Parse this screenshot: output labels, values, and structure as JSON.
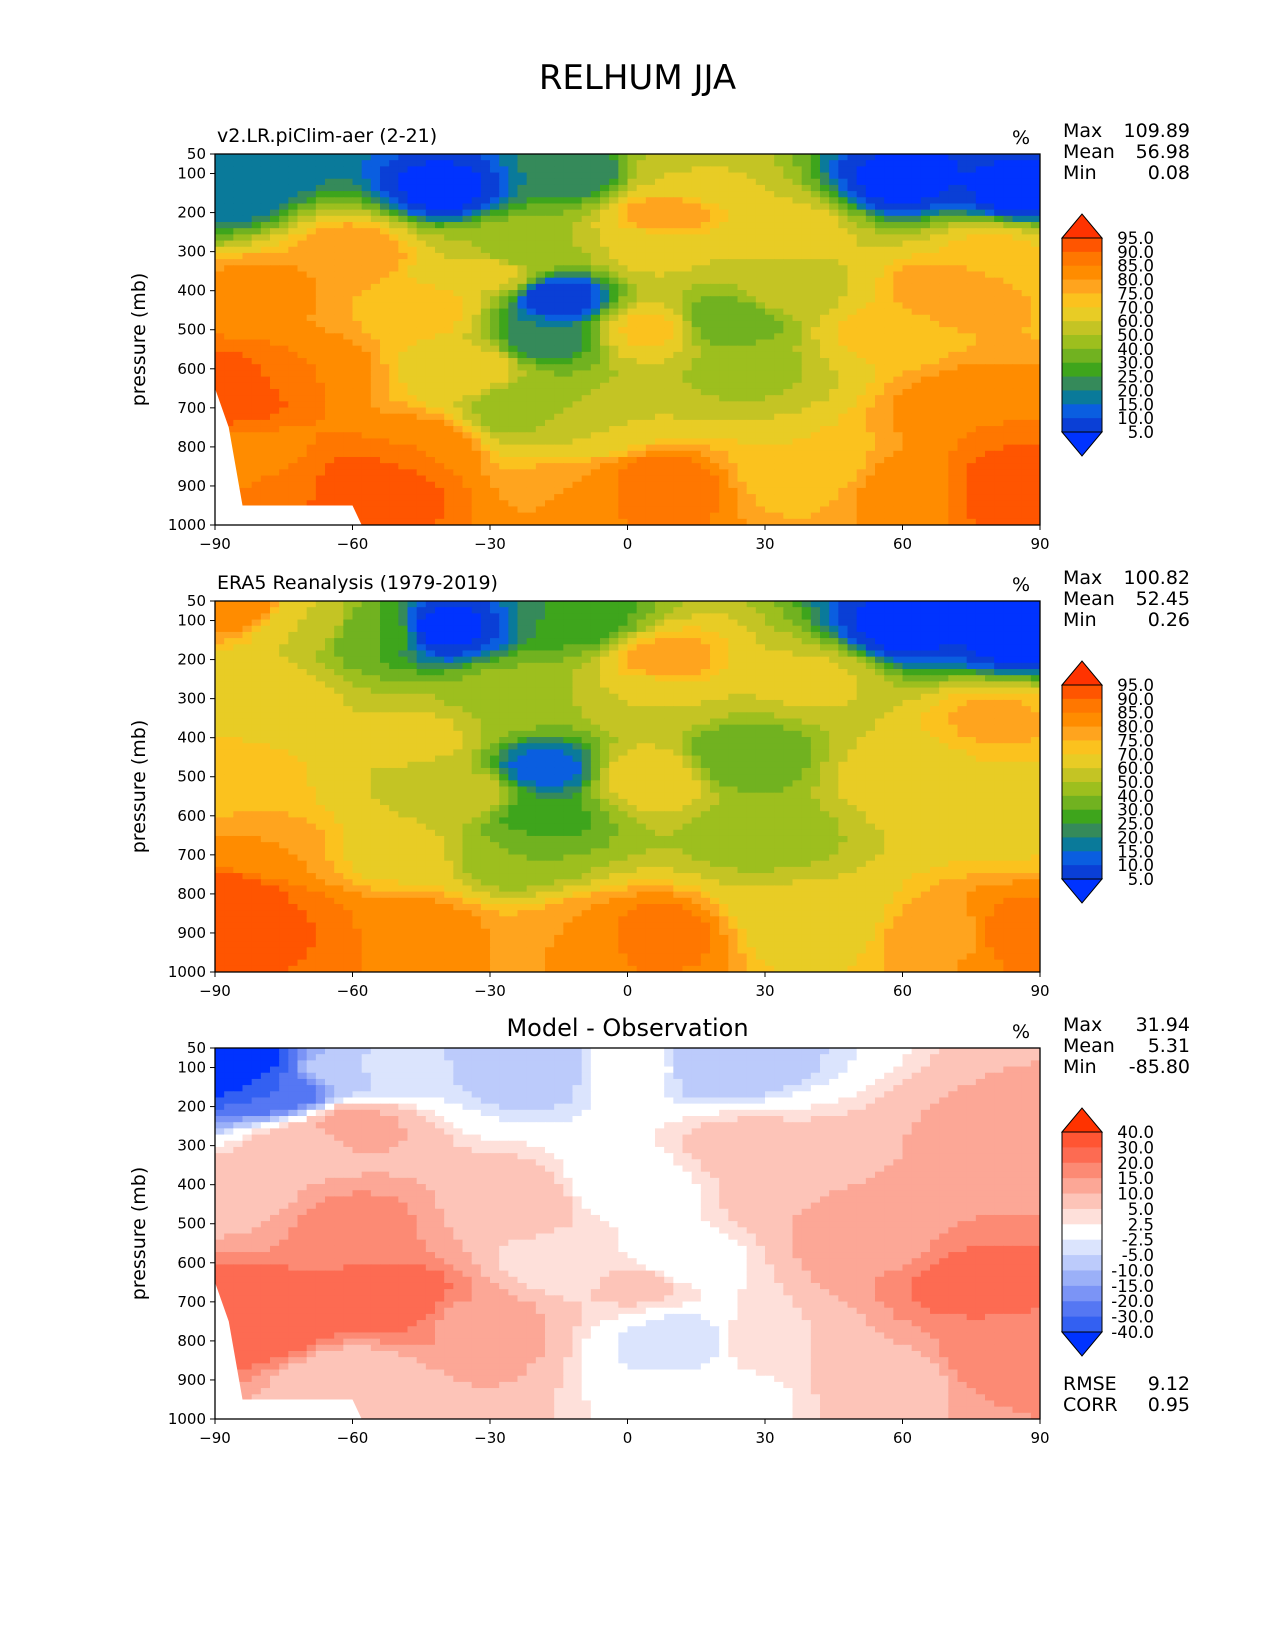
{
  "figure": {
    "title": "RELHUM JJA"
  },
  "chart_data": [
    {
      "type": "heatmap",
      "title": "v2.LR.piClim-aer (2-21)",
      "units": "%",
      "ylabel": "pressure (mb)",
      "xticks": [
        "−90",
        "−60",
        "−30",
        "0",
        "30",
        "60",
        "90"
      ],
      "yticks": [
        "50",
        "100",
        "200",
        "300",
        "400",
        "500",
        "600",
        "700",
        "800",
        "900",
        "1000"
      ],
      "xlim": [
        -90,
        90
      ],
      "ylim": [
        1000,
        50
      ],
      "stats": [
        {
          "label": "Max",
          "value": "109.89"
        },
        {
          "label": "Mean",
          "value": "56.98"
        },
        {
          "label": "Min",
          "value": "0.08"
        }
      ],
      "colorbar": {
        "levels": [
          "95.0",
          "90.0",
          "85.0",
          "80.0",
          "75.0",
          "70.0",
          "60.0",
          "50.0",
          "40.0",
          "30.0",
          "25.0",
          "20.0",
          "15.0",
          "10.0",
          "5.0"
        ],
        "colors": [
          "#ff3300",
          "#ff5500",
          "#ff7700",
          "#ff8c00",
          "#ffa41e",
          "#fbc21e",
          "#e8cc25",
          "#c4c424",
          "#9dbf1e",
          "#71b220",
          "#3ea51c",
          "#358a5a",
          "#0a7a9a",
          "#0a5ee0",
          "#0a3fd6",
          "#0033ff"
        ]
      },
      "regions": [
        {
          "lon": -88,
          "p": 150,
          "value": 15
        },
        {
          "lon": -80,
          "p": 70,
          "value": 15
        },
        {
          "lon": -40,
          "p": 140,
          "value": 3
        },
        {
          "lon": 60,
          "p": 120,
          "value": 3
        },
        {
          "lon": 85,
          "p": 150,
          "value": 3
        },
        {
          "lon": -10,
          "p": 100,
          "value": 20
        },
        {
          "lon": 10,
          "p": 120,
          "value": 60
        },
        {
          "lon": 8,
          "p": 200,
          "value": 80
        },
        {
          "lon": -60,
          "p": 300,
          "value": 80
        },
        {
          "lon": -80,
          "p": 400,
          "value": 82
        },
        {
          "lon": -70,
          "p": 600,
          "value": 85
        },
        {
          "lon": -87,
          "p": 650,
          "value": 95
        },
        {
          "lon": -82,
          "p": 850,
          "value": 80
        },
        {
          "lon": -75,
          "p": 900,
          "value": 90
        },
        {
          "lon": -55,
          "p": 900,
          "value": 95
        },
        {
          "lon": -45,
          "p": 800,
          "value": 85
        },
        {
          "lon": -45,
          "p": 450,
          "value": 75
        },
        {
          "lon": -35,
          "p": 600,
          "value": 68
        },
        {
          "lon": -30,
          "p": 350,
          "value": 65
        },
        {
          "lon": -15,
          "p": 420,
          "value": 5
        },
        {
          "lon": -18,
          "p": 520,
          "value": 20
        },
        {
          "lon": -22,
          "p": 700,
          "value": 40
        },
        {
          "lon": -25,
          "p": 300,
          "value": 45
        },
        {
          "lon": -10,
          "p": 750,
          "value": 60
        },
        {
          "lon": 5,
          "p": 500,
          "value": 72
        },
        {
          "lon": 5,
          "p": 300,
          "value": 62
        },
        {
          "lon": 5,
          "p": 900,
          "value": 90
        },
        {
          "lon": -10,
          "p": 900,
          "value": 80
        },
        {
          "lon": 22,
          "p": 480,
          "value": 30
        },
        {
          "lon": 25,
          "p": 600,
          "value": 48
        },
        {
          "lon": 35,
          "p": 400,
          "value": 55
        },
        {
          "lon": 40,
          "p": 850,
          "value": 70
        },
        {
          "lon": 35,
          "p": 250,
          "value": 65
        },
        {
          "lon": 55,
          "p": 500,
          "value": 72
        },
        {
          "lon": 70,
          "p": 400,
          "value": 80
        },
        {
          "lon": 75,
          "p": 700,
          "value": 85
        },
        {
          "lon": 80,
          "p": 300,
          "value": 72
        },
        {
          "lon": 85,
          "p": 900,
          "value": 95
        },
        {
          "lon": 60,
          "p": 900,
          "value": 82
        }
      ]
    },
    {
      "type": "heatmap",
      "title": "ERA5 Reanalysis (1979-2019)",
      "units": "%",
      "ylabel": "pressure (mb)",
      "xticks": [
        "−90",
        "−60",
        "−30",
        "0",
        "30",
        "60",
        "90"
      ],
      "yticks": [
        "50",
        "100",
        "200",
        "300",
        "400",
        "500",
        "600",
        "700",
        "800",
        "900",
        "1000"
      ],
      "xlim": [
        -90,
        90
      ],
      "ylim": [
        1000,
        50
      ],
      "stats": [
        {
          "label": "Max",
          "value": "100.82"
        },
        {
          "label": "Mean",
          "value": "52.45"
        },
        {
          "label": "Min",
          "value": "0.26"
        }
      ],
      "colorbar": {
        "levels": [
          "95.0",
          "90.0",
          "85.0",
          "80.0",
          "75.0",
          "70.0",
          "60.0",
          "50.0",
          "40.0",
          "30.0",
          "25.0",
          "20.0",
          "15.0",
          "10.0",
          "5.0"
        ],
        "colors": [
          "#ff3300",
          "#ff5500",
          "#ff7700",
          "#ff8c00",
          "#ffa41e",
          "#fbc21e",
          "#e8cc25",
          "#c4c424",
          "#9dbf1e",
          "#71b220",
          "#3ea51c",
          "#358a5a",
          "#0a7a9a",
          "#0a5ee0",
          "#0a3fd6",
          "#0033ff"
        ]
      },
      "regions": [
        {
          "lon": -85,
          "p": 60,
          "value": 85
        },
        {
          "lon": -70,
          "p": 100,
          "value": 60
        },
        {
          "lon": -40,
          "p": 120,
          "value": 3
        },
        {
          "lon": -55,
          "p": 130,
          "value": 30
        },
        {
          "lon": 60,
          "p": 120,
          "value": 3
        },
        {
          "lon": 85,
          "p": 150,
          "value": 3
        },
        {
          "lon": -10,
          "p": 100,
          "value": 25
        },
        {
          "lon": 8,
          "p": 200,
          "value": 78
        },
        {
          "lon": -80,
          "p": 300,
          "value": 68
        },
        {
          "lon": -85,
          "p": 500,
          "value": 72
        },
        {
          "lon": -88,
          "p": 800,
          "value": 95
        },
        {
          "lon": -80,
          "p": 700,
          "value": 80
        },
        {
          "lon": -75,
          "p": 900,
          "value": 92
        },
        {
          "lon": -60,
          "p": 900,
          "value": 85
        },
        {
          "lon": -45,
          "p": 880,
          "value": 82
        },
        {
          "lon": -50,
          "p": 700,
          "value": 68
        },
        {
          "lon": -45,
          "p": 400,
          "value": 62
        },
        {
          "lon": -35,
          "p": 550,
          "value": 58
        },
        {
          "lon": -18,
          "p": 480,
          "value": 12
        },
        {
          "lon": -20,
          "p": 600,
          "value": 25
        },
        {
          "lon": -25,
          "p": 700,
          "value": 40
        },
        {
          "lon": -25,
          "p": 300,
          "value": 45
        },
        {
          "lon": 5,
          "p": 500,
          "value": 70
        },
        {
          "lon": 5,
          "p": 300,
          "value": 60
        },
        {
          "lon": 5,
          "p": 900,
          "value": 88
        },
        {
          "lon": -10,
          "p": 900,
          "value": 80
        },
        {
          "lon": 25,
          "p": 450,
          "value": 30
        },
        {
          "lon": 30,
          "p": 650,
          "value": 45
        },
        {
          "lon": 40,
          "p": 850,
          "value": 62
        },
        {
          "lon": 40,
          "p": 250,
          "value": 62
        },
        {
          "lon": 60,
          "p": 500,
          "value": 66
        },
        {
          "lon": 80,
          "p": 350,
          "value": 76
        },
        {
          "lon": 80,
          "p": 600,
          "value": 68
        },
        {
          "lon": 85,
          "p": 900,
          "value": 88
        },
        {
          "lon": 70,
          "p": 900,
          "value": 78
        }
      ]
    },
    {
      "type": "heatmap",
      "title": "Model - Observation",
      "units": "%",
      "ylabel": "pressure (mb)",
      "xticks": [
        "−90",
        "−60",
        "−30",
        "0",
        "30",
        "60",
        "90"
      ],
      "yticks": [
        "50",
        "100",
        "200",
        "300",
        "400",
        "500",
        "600",
        "700",
        "800",
        "900",
        "1000"
      ],
      "xlim": [
        -90,
        90
      ],
      "ylim": [
        1000,
        50
      ],
      "stats": [
        {
          "label": "Max",
          "value": "31.94"
        },
        {
          "label": "Mean",
          "value": "5.31"
        },
        {
          "label": "Min",
          "value": "-85.80"
        }
      ],
      "extra_stats": [
        {
          "label": "RMSE",
          "value": "9.12"
        },
        {
          "label": "CORR",
          "value": "0.95"
        }
      ],
      "colorbar": {
        "levels": [
          "40.0",
          "30.0",
          "20.0",
          "15.0",
          "10.0",
          "5.0",
          "2.5",
          "-2.5",
          "-5.0",
          "-10.0",
          "-15.0",
          "-20.0",
          "-30.0",
          "-40.0"
        ],
        "colors": [
          "#ff3300",
          "#ff5533",
          "#fd6b52",
          "#fc8a74",
          "#fca796",
          "#fdc4b8",
          "#fee0da",
          "#ffffff",
          "#dbe4fd",
          "#bccbfb",
          "#9bb0f8",
          "#7b94f6",
          "#5577f3",
          "#3360f2",
          "#0033ff"
        ]
      },
      "regions": [
        {
          "lon": -85,
          "p": 90,
          "value": -60
        },
        {
          "lon": -75,
          "p": 150,
          "value": -30
        },
        {
          "lon": -65,
          "p": 110,
          "value": -8
        },
        {
          "lon": -52,
          "p": 100,
          "value": -4
        },
        {
          "lon": -20,
          "p": 100,
          "value": -8
        },
        {
          "lon": 20,
          "p": 100,
          "value": -8
        },
        {
          "lon": 0,
          "p": 100,
          "value": 0
        },
        {
          "lon": -70,
          "p": 300,
          "value": 9
        },
        {
          "lon": -60,
          "p": 250,
          "value": 12
        },
        {
          "lon": -85,
          "p": 420,
          "value": 8
        },
        {
          "lon": -60,
          "p": 500,
          "value": 17
        },
        {
          "lon": -50,
          "p": 700,
          "value": 25
        },
        {
          "lon": -80,
          "p": 750,
          "value": 28
        },
        {
          "lon": -35,
          "p": 750,
          "value": 14
        },
        {
          "lon": -25,
          "p": 450,
          "value": 8
        },
        {
          "lon": -15,
          "p": 600,
          "value": 3
        },
        {
          "lon": -60,
          "p": 900,
          "value": 5
        },
        {
          "lon": 0,
          "p": 400,
          "value": 0
        },
        {
          "lon": 10,
          "p": 600,
          "value": 0
        },
        {
          "lon": 3,
          "p": 650,
          "value": 6
        },
        {
          "lon": 12,
          "p": 800,
          "value": -5
        },
        {
          "lon": 30,
          "p": 800,
          "value": 5
        },
        {
          "lon": 25,
          "p": 300,
          "value": 6
        },
        {
          "lon": 40,
          "p": 400,
          "value": 10
        },
        {
          "lon": 55,
          "p": 550,
          "value": 14
        },
        {
          "lon": 75,
          "p": 650,
          "value": 22
        },
        {
          "lon": 85,
          "p": 300,
          "value": 12
        },
        {
          "lon": 80,
          "p": 850,
          "value": 18
        },
        {
          "lon": 60,
          "p": 900,
          "value": 8
        },
        {
          "lon": 20,
          "p": 950,
          "value": 1
        }
      ]
    }
  ]
}
